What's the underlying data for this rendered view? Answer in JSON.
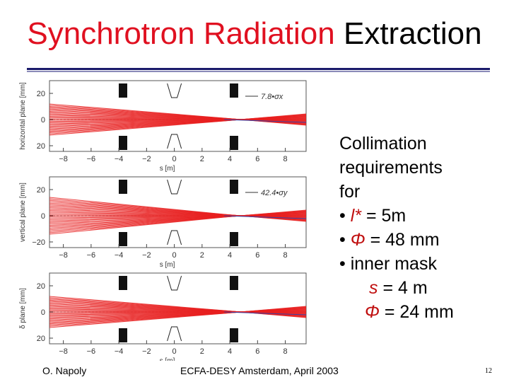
{
  "title": {
    "part_red": "Synchrotron Radiation",
    "part_black": "Extraction"
  },
  "panels": [
    {
      "ylabel": "horizontal plane [mm]",
      "legend": "7.8•σx",
      "yticks": [
        "20",
        "0",
        "20"
      ]
    },
    {
      "ylabel": "vertical plane [mm]",
      "legend": "42.4•σy",
      "yticks": [
        "20",
        "0",
        "−20"
      ]
    },
    {
      "ylabel": "δ plane [mm]",
      "legend": "",
      "yticks": [
        "20",
        "0",
        "20"
      ]
    }
  ],
  "xticks": [
    "−8",
    "−6",
    "−4",
    "−2",
    "0",
    "2",
    "4",
    "6",
    "8"
  ],
  "xlabel": "s [m]",
  "text": {
    "line1": "Collimation",
    "line2": "requirements",
    "line3": "for",
    "b1_bullet": "• ",
    "b1_sym": "l*",
    "b1_rest": " = 5m",
    "b2_bullet": "• ",
    "b2_sym": "Φ",
    "b2_rest": " = 48 mm",
    "b3": "• inner mask",
    "s_sym": "s",
    "s_rest": " = 4 m",
    "phi_sym": "Φ",
    "phi_rest": " = 24 mm"
  },
  "footer": {
    "author": "O. Napoly",
    "conference": "ECFA-DESY Amsterdam, April 2003",
    "page": "12"
  },
  "colors": {
    "title_red": "#e01020",
    "beam_red": "#e82020"
  }
}
